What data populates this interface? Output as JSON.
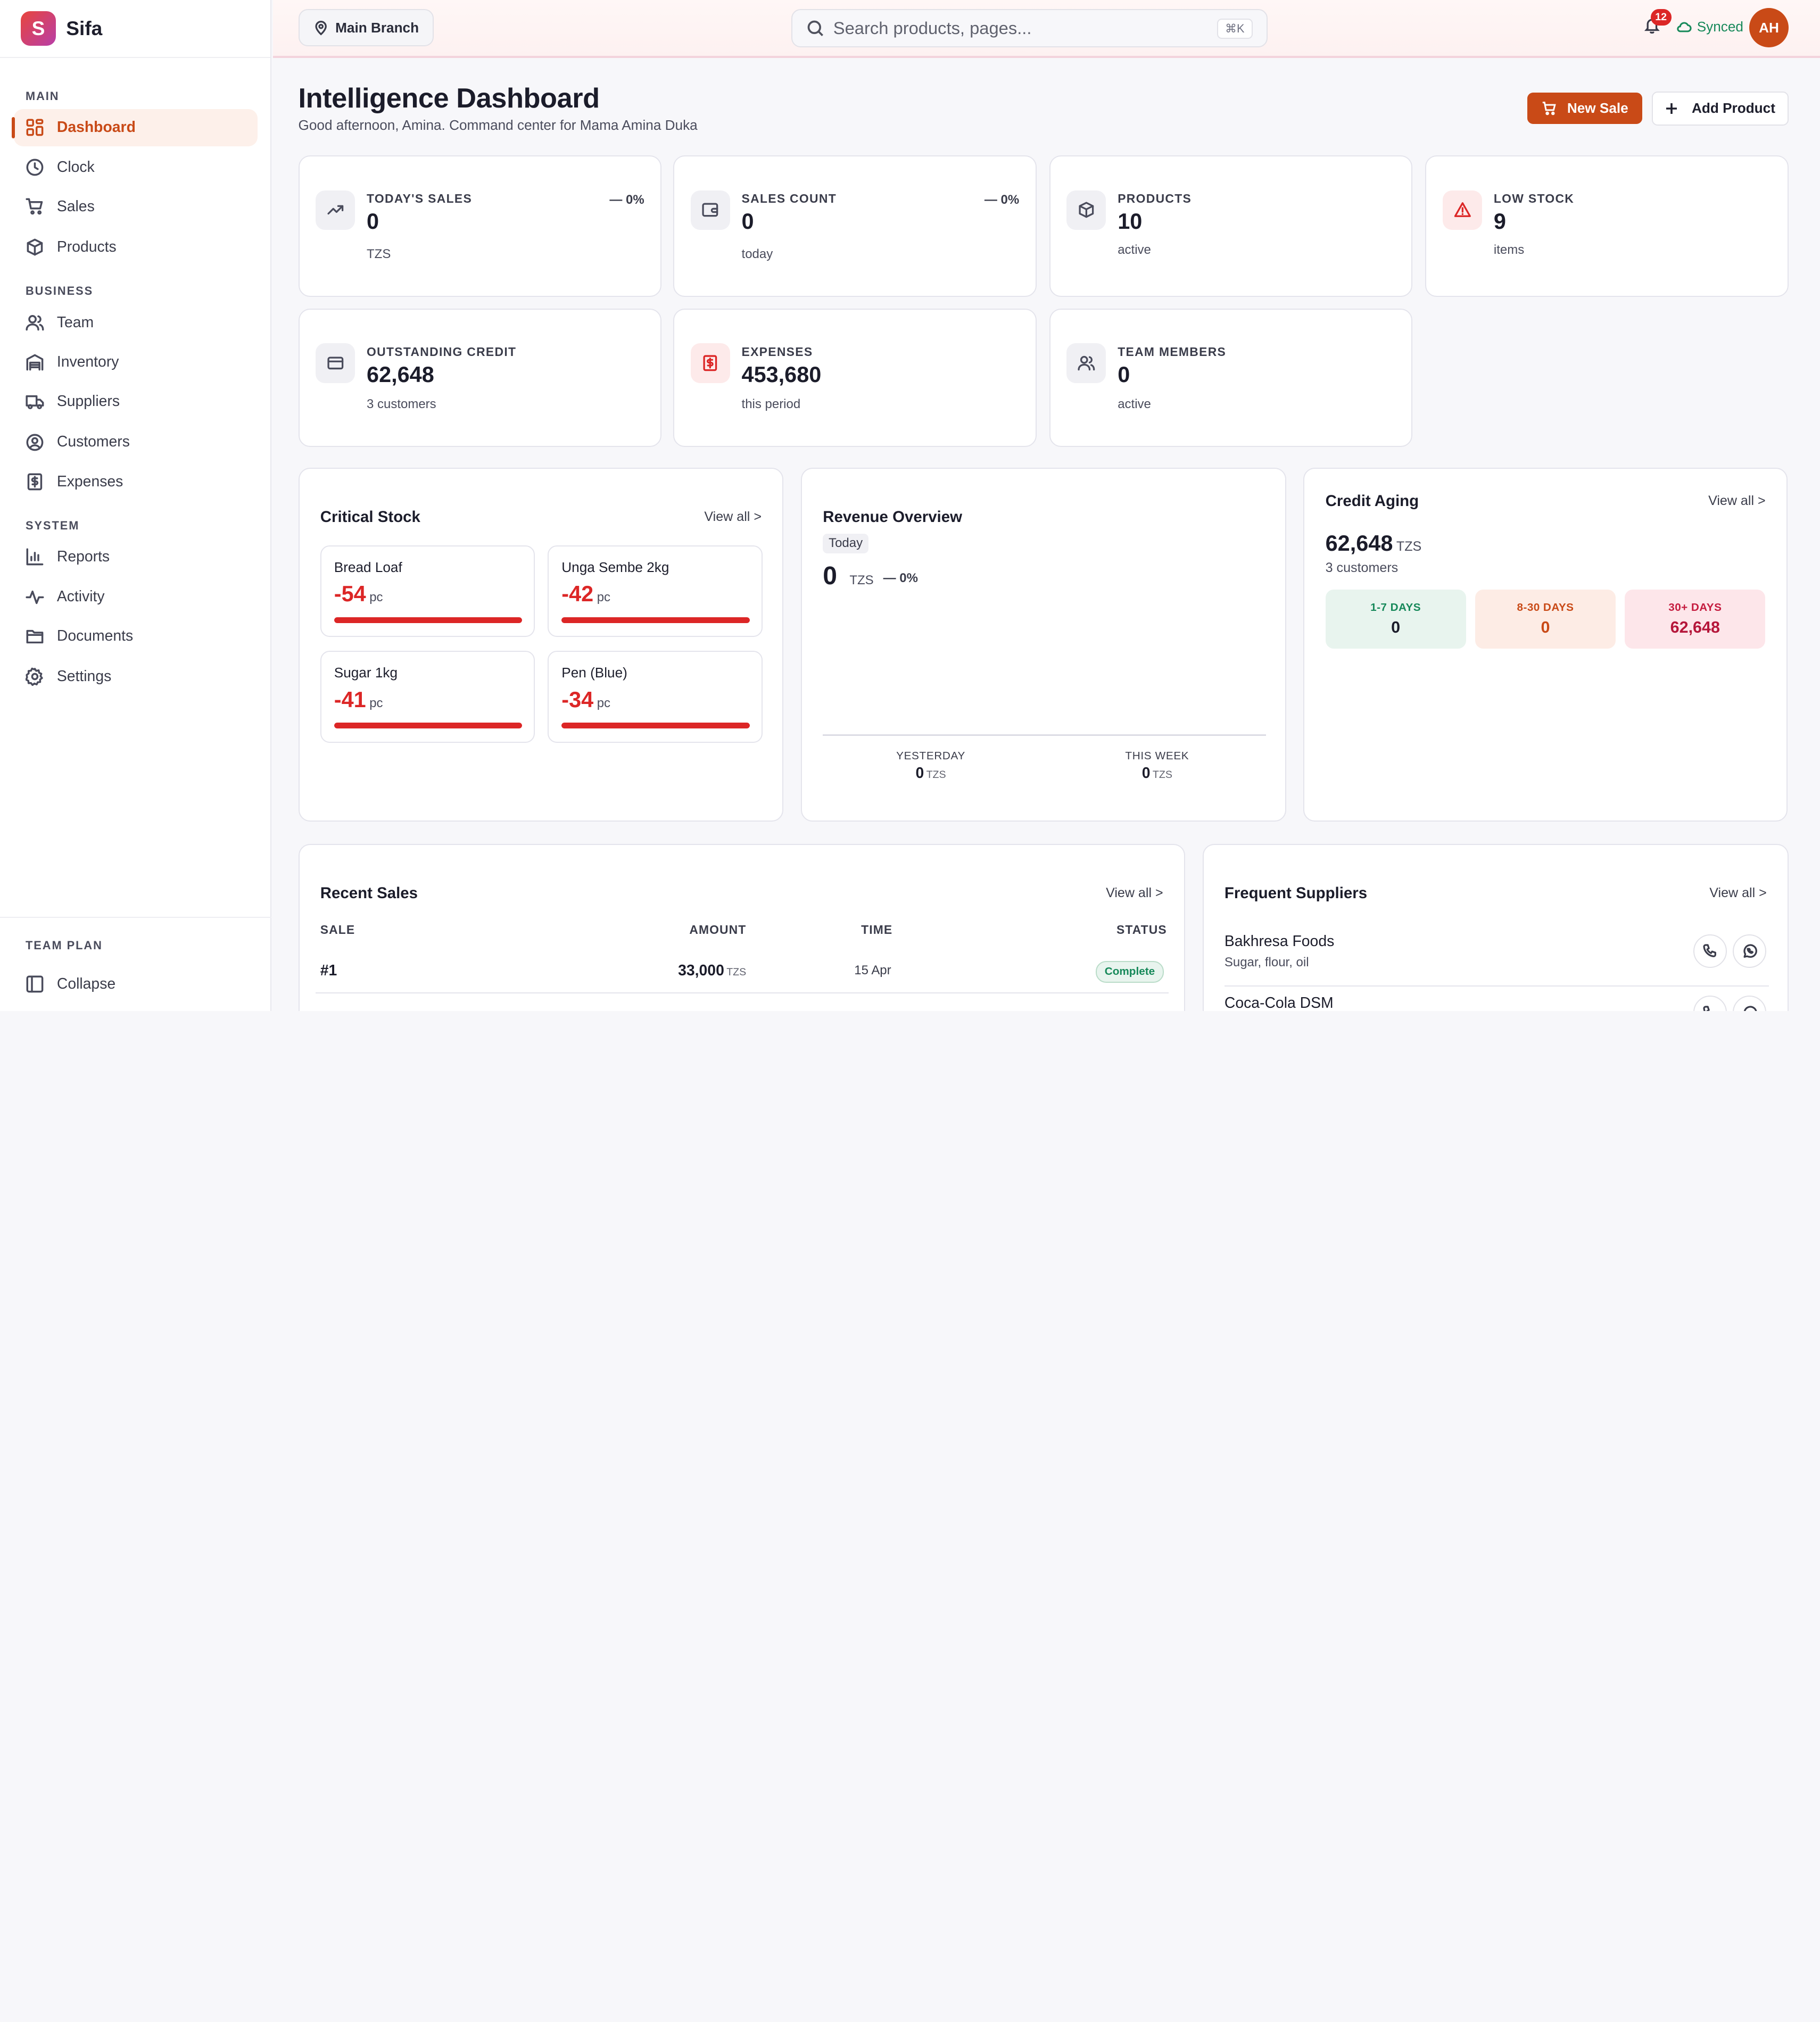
{
  "brand": {
    "logo_letter": "S",
    "name": "Sifa"
  },
  "sidebar": {
    "sections": [
      {
        "title": "MAIN"
      },
      {
        "title": "BUSINESS"
      },
      {
        "title": "SYSTEM"
      }
    ],
    "items": [
      {
        "label": "Dashboard",
        "icon": "dashboard-grid-icon",
        "active": true
      },
      {
        "label": "Clock",
        "icon": "clock-icon"
      },
      {
        "label": "Sales",
        "icon": "shopping-cart-icon"
      },
      {
        "label": "Products",
        "icon": "box-icon"
      },
      {
        "label": "Team",
        "icon": "users-icon"
      },
      {
        "label": "Inventory",
        "icon": "warehouse-icon"
      },
      {
        "label": "Suppliers",
        "icon": "truck-icon"
      },
      {
        "label": "Customers",
        "icon": "user-circle-icon"
      },
      {
        "label": "Expenses",
        "icon": "receipt-icon"
      },
      {
        "label": "Reports",
        "icon": "bar-chart-icon"
      },
      {
        "label": "Activity",
        "icon": "activity-icon"
      },
      {
        "label": "Documents",
        "icon": "folder-icon"
      },
      {
        "label": "Settings",
        "icon": "gear-icon"
      }
    ],
    "footer": {
      "plan_label": "TEAM PLAN",
      "collapse_label": "Collapse"
    }
  },
  "topbar": {
    "branch": "Main Branch",
    "search_placeholder": "Search products, pages...",
    "search_shortcut": "⌘K",
    "notification_count": "12",
    "sync_status": "Synced",
    "avatar_initials": "AH"
  },
  "header": {
    "title": "Intelligence Dashboard",
    "subtitle": "Good afternoon, Amina. Command center for Mama Amina Duka",
    "new_sale_label": "New Sale",
    "add_product_label": "Add Product"
  },
  "stats": [
    {
      "label": "TODAY'S SALES",
      "value": "0",
      "sub": "TZS",
      "trend": "— 0%",
      "icon": "trending-up-icon"
    },
    {
      "label": "SALES COUNT",
      "value": "0",
      "sub": "today",
      "trend": "— 0%",
      "icon": "wallet-icon"
    },
    {
      "label": "PRODUCTS",
      "value": "10",
      "sub": "active",
      "icon": "box-icon"
    },
    {
      "label": "LOW STOCK",
      "value": "9",
      "sub": "items",
      "icon": "warning-triangle-icon"
    },
    {
      "label": "OUTSTANDING CREDIT",
      "value": "62,648",
      "sub": "3 customers",
      "icon": "credit-card-icon"
    },
    {
      "label": "EXPENSES",
      "value": "453,680",
      "sub": "this period",
      "icon": "receipt-icon"
    },
    {
      "label": "TEAM MEMBERS",
      "value": "0",
      "sub": "active",
      "icon": "users-icon"
    }
  ],
  "critical_stock": {
    "title": "Critical Stock",
    "view_all": "View all >",
    "items": [
      {
        "name": "Bread Loaf",
        "qty": "-54",
        "unit": "pc",
        "level": 1.0
      },
      {
        "name": "Unga Sembe 2kg",
        "qty": "-42",
        "unit": "pc",
        "level": 1.0
      },
      {
        "name": "Sugar 1kg",
        "qty": "-41",
        "unit": "pc",
        "level": 1.0
      },
      {
        "name": "Pen (Blue)",
        "qty": "-34",
        "unit": "pc",
        "level": 1.0
      }
    ]
  },
  "revenue": {
    "title": "Revenue Overview",
    "period": "Today",
    "value": "0",
    "unit": "TZS",
    "trend": "— 0%",
    "yesterday_label": "YESTERDAY",
    "yesterday_value": "0",
    "week_label": "THIS WEEK",
    "week_value": "0"
  },
  "credit_aging": {
    "title": "Credit Aging",
    "view_all": "View all >",
    "total": "62,648",
    "unit": "TZS",
    "customers": "3 customers",
    "buckets": [
      {
        "label": "1-7 DAYS",
        "value": "0"
      },
      {
        "label": "8-30 DAYS",
        "value": "0"
      },
      {
        "label": "30+ DAYS",
        "value": "62,648"
      }
    ]
  },
  "recent_sales": {
    "title": "Recent Sales",
    "view_all": "View all >",
    "columns": [
      "SALE",
      "AMOUNT",
      "TIME",
      "STATUS"
    ],
    "rows": [
      {
        "id": "#1",
        "amount": "33,000",
        "unit": "TZS",
        "time": "15 Apr",
        "status": "Complete"
      }
    ]
  },
  "suppliers": {
    "title": "Frequent Suppliers",
    "view_all": "View all >",
    "items": [
      {
        "name": "Bakhresa Foods",
        "desc": "Sugar, flour, oil"
      },
      {
        "name": "Coca-Cola DSM",
        "desc": ""
      }
    ]
  },
  "colors": {
    "accent": "#c94a17",
    "danger": "#dc2626",
    "success": "#17895a"
  }
}
